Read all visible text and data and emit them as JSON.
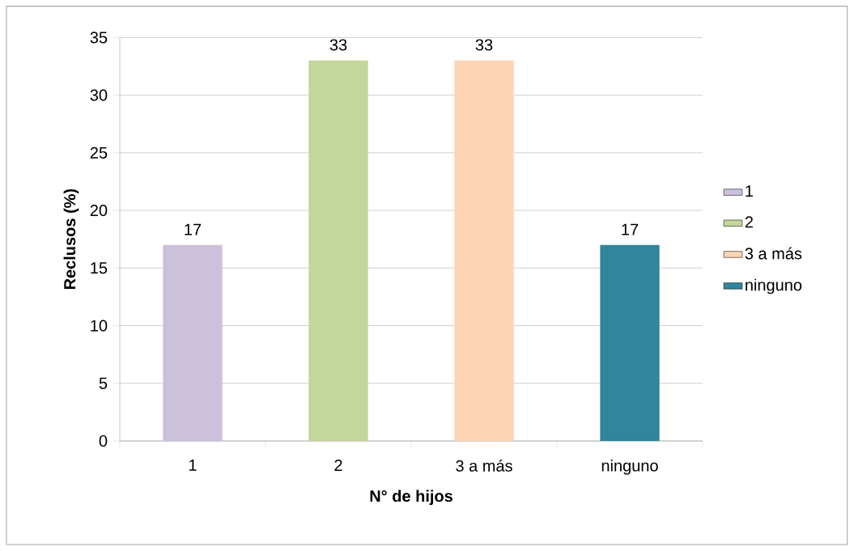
{
  "chart_data": {
    "type": "bar",
    "xlabel": "N° de hijos",
    "ylabel": "Reclusos (%)",
    "categories": [
      "1",
      "2",
      "3 a más",
      "ninguno"
    ],
    "series": [
      {
        "name": "1",
        "color": "#ccc1da",
        "values": [
          17,
          null,
          null,
          null
        ]
      },
      {
        "name": "2",
        "color": "#c3d69b",
        "values": [
          null,
          33,
          null,
          null
        ]
      },
      {
        "name": "3 a más",
        "color": "#fcd5b5",
        "values": [
          null,
          null,
          33,
          null
        ]
      },
      {
        "name": "ninguno",
        "color": "#31859c",
        "values": [
          null,
          null,
          null,
          17
        ]
      }
    ],
    "ylim": [
      0,
      35
    ],
    "yticks": [
      0,
      5,
      10,
      15,
      20,
      25,
      30,
      35
    ],
    "grid": "y",
    "legend": "right",
    "data_labels": true
  }
}
